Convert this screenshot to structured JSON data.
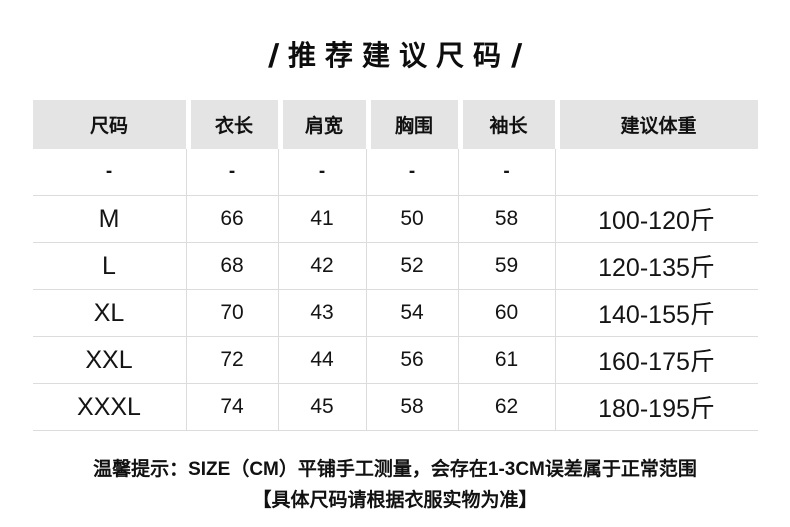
{
  "title": {
    "slash_left": "/",
    "text": "推荐建议尺码",
    "slash_right": "/"
  },
  "chart_data": {
    "type": "table",
    "title": "推荐建议尺码",
    "columns": [
      "尺码",
      "衣长",
      "肩宽",
      "胸围",
      "袖长",
      "建议体重"
    ],
    "rows": [
      [
        "-",
        "-",
        "-",
        "-",
        "-",
        ""
      ],
      [
        "M",
        "66",
        "41",
        "50",
        "58",
        "100-120斤"
      ],
      [
        "L",
        "68",
        "42",
        "52",
        "59",
        "120-135斤"
      ],
      [
        "XL",
        "70",
        "43",
        "54",
        "60",
        "140-155斤"
      ],
      [
        "XXL",
        "72",
        "44",
        "56",
        "61",
        "160-175斤"
      ],
      [
        "XXXL",
        "74",
        "45",
        "58",
        "62",
        "180-195斤"
      ]
    ],
    "notes": [
      "温馨提示：SIZE（CM）平铺手工测量，会存在1-3CM误差属于正常范围",
      "【具体尺码请根据衣服实物为准】"
    ]
  },
  "colors": {
    "background": "#ffffff",
    "header_bg": "#e4e4e4",
    "grid": "#dcdcdc",
    "text": "#1a1a1a"
  }
}
